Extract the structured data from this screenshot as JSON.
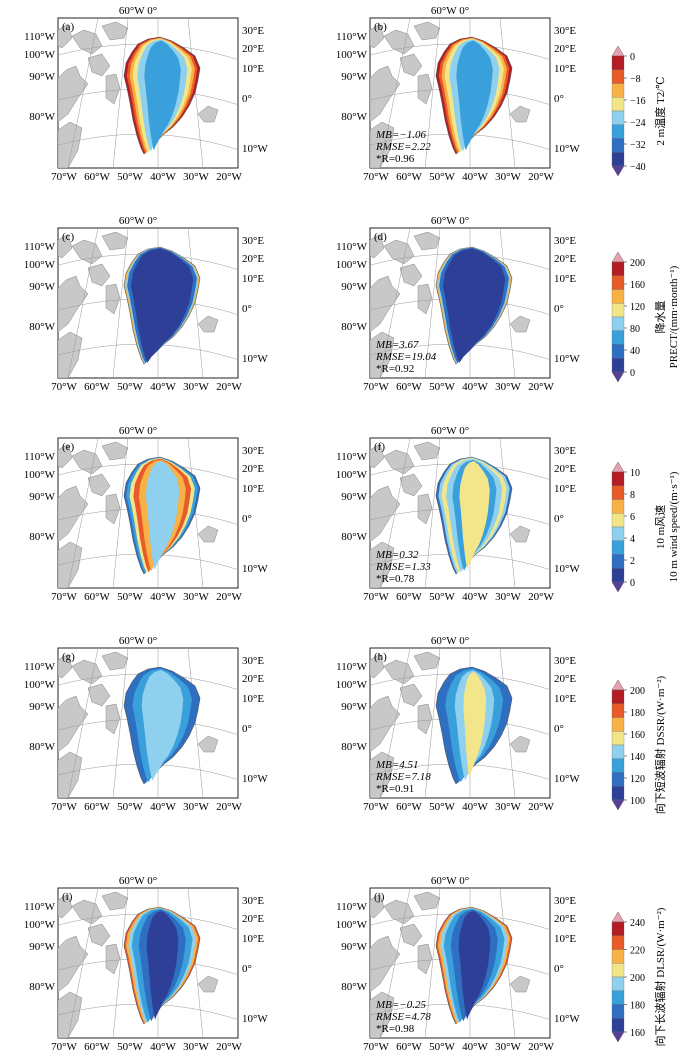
{
  "colors": {
    "land": "#c8c8c8",
    "ocean": "#ffffff",
    "frame": "#222222",
    "grid": "#9a9a9a",
    "palette": [
      "#2e3f98",
      "#2f6fc2",
      "#3aa0dc",
      "#8fd0ee",
      "#f2e58a",
      "#f7b144",
      "#e85a2a",
      "#b31c22"
    ],
    "under": "#5a3f9a",
    "over": "#e8a1b0"
  },
  "lon_top": "60°W 0°",
  "lon_bottom": [
    "70°W",
    "60°W",
    "50°W",
    "40°W",
    "30°W",
    "20°W"
  ],
  "lat_left": [
    "110°W",
    "100°W",
    "90°W",
    "80°W"
  ],
  "right_labels": [
    "30°E",
    "20°E",
    "10°E",
    "0°",
    "10°W"
  ],
  "panels": [
    {
      "tag": "(a)",
      "pattern": "temp",
      "stats": null
    },
    {
      "tag": "(b)",
      "pattern": "temp",
      "stats": {
        "mb": "MB=−1.06",
        "rmse": "RMSE=2.22",
        "r": "*R=0.96"
      }
    },
    {
      "tag": "(c)",
      "pattern": "precip",
      "stats": null
    },
    {
      "tag": "(d)",
      "pattern": "precip",
      "stats": {
        "mb": "MB=3.67",
        "rmse": "RMSE=19.04",
        "r": "*R=0.92"
      }
    },
    {
      "tag": "(e)",
      "pattern": "wind",
      "stats": null
    },
    {
      "tag": "(f)",
      "pattern": "wind2",
      "stats": {
        "mb": "MB=0.32",
        "rmse": "RMSE=1.33",
        "r": "*R=0.78"
      }
    },
    {
      "tag": "(g)",
      "pattern": "dssr",
      "stats": null
    },
    {
      "tag": "(h)",
      "pattern": "dssr2",
      "stats": {
        "mb": "MB=4.51",
        "rmse": "RMSE=7.18",
        "r": "*R=0.91"
      }
    },
    {
      "tag": "(i)",
      "pattern": "dlsr",
      "stats": null
    },
    {
      "tag": "(j)",
      "pattern": "dlsr",
      "stats": {
        "mb": "MB=−0.25",
        "rmse": "RMSE=4.78",
        "r": "*R=0.98"
      }
    }
  ],
  "chart_data": [
    {
      "type": "heatmap",
      "variable": "2 m temperature",
      "title_cn": "2 m温度 T2/℃",
      "ticks": [
        "0",
        "−8",
        "−16",
        "−24",
        "−32",
        "−40"
      ],
      "range": [
        -40,
        0
      ],
      "panels": [
        "(a)",
        "(b)"
      ],
      "stats_b": {
        "MB": -1.06,
        "RMSE": 2.22,
        "R": 0.96
      }
    },
    {
      "type": "heatmap",
      "variable": "precipitation",
      "title_cn": "降水量",
      "title_en": "PRECT/(mm·month⁻¹)",
      "ticks": [
        "200",
        "160",
        "120",
        "80",
        "40",
        "0"
      ],
      "range": [
        0,
        200
      ],
      "panels": [
        "(c)",
        "(d)"
      ],
      "stats_d": {
        "MB": 3.67,
        "RMSE": 19.04,
        "R": 0.92
      }
    },
    {
      "type": "heatmap",
      "variable": "10 m wind speed",
      "title_cn": "10 m风速",
      "title_en": "10 m wind speed/(m·s⁻¹)",
      "ticks": [
        "10",
        "8",
        "6",
        "4",
        "2",
        "0"
      ],
      "range": [
        0,
        10
      ],
      "panels": [
        "(e)",
        "(f)"
      ],
      "stats_f": {
        "MB": 0.32,
        "RMSE": 1.33,
        "R": 0.78
      }
    },
    {
      "type": "heatmap",
      "variable": "downward shortwave radiation",
      "title_cn": "向下短波辐射 DSSR/(W·m⁻²)",
      "ticks": [
        "200",
        "180",
        "160",
        "140",
        "120",
        "100"
      ],
      "range": [
        100,
        200
      ],
      "panels": [
        "(g)",
        "(h)"
      ],
      "stats_h": {
        "MB": 4.51,
        "RMSE": 7.18,
        "R": 0.91
      }
    },
    {
      "type": "heatmap",
      "variable": "downward longwave radiation",
      "title_cn": "向下长波辐射 DLSR/(W·m⁻²)",
      "ticks": [
        "240",
        "220",
        "200",
        "180",
        "160"
      ],
      "range": [
        160,
        240
      ],
      "panels": [
        "(i)",
        "(j)"
      ],
      "stats_j": {
        "MB": -0.25,
        "RMSE": 4.78,
        "R": 0.98
      }
    }
  ]
}
